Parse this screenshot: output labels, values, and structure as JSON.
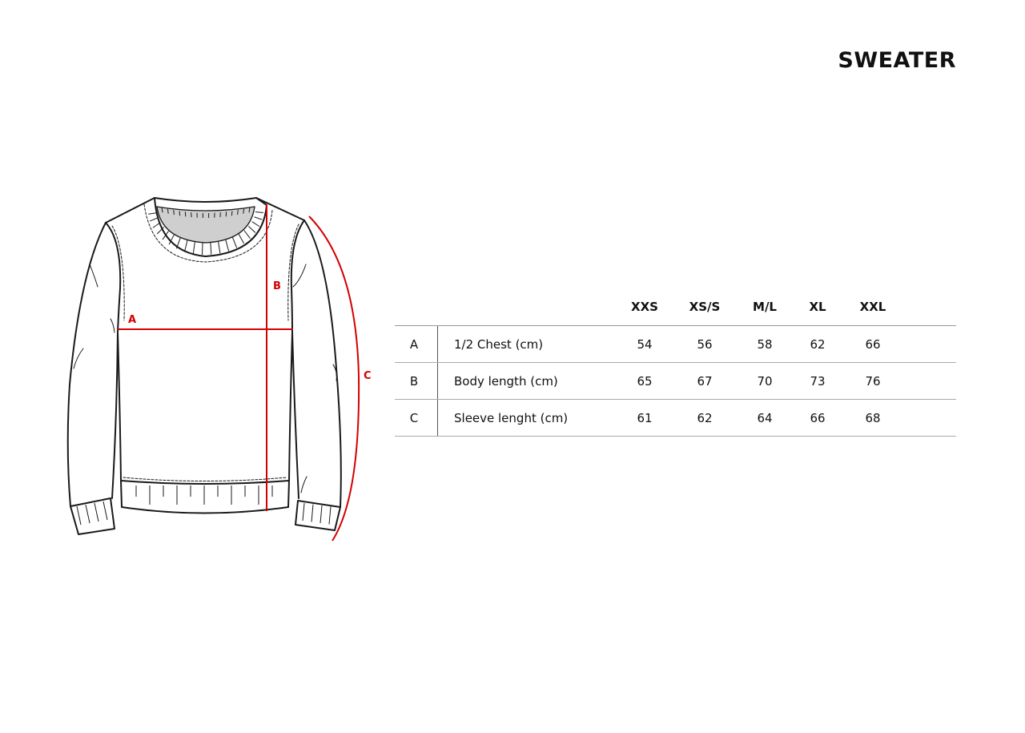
{
  "title": "SWEATER",
  "diagram": {
    "labels": [
      "A",
      "B",
      "C"
    ],
    "measure_color": "#d40000",
    "outline_color": "#1a1a1a",
    "neck_fill": "#cfcfcf"
  },
  "table": {
    "sizes": [
      "XXS",
      "XS/S",
      "M/L",
      "XL",
      "XXL"
    ],
    "rows": [
      {
        "key": "A",
        "label": "1/2 Chest (cm)",
        "values": [
          "54",
          "56",
          "58",
          "62",
          "66"
        ]
      },
      {
        "key": "B",
        "label": "Body length (cm)",
        "values": [
          "65",
          "67",
          "70",
          "73",
          "76"
        ]
      },
      {
        "key": "C",
        "label": "Sleeve lenght (cm)",
        "values": [
          "61",
          "62",
          "64",
          "66",
          "68"
        ]
      }
    ]
  }
}
